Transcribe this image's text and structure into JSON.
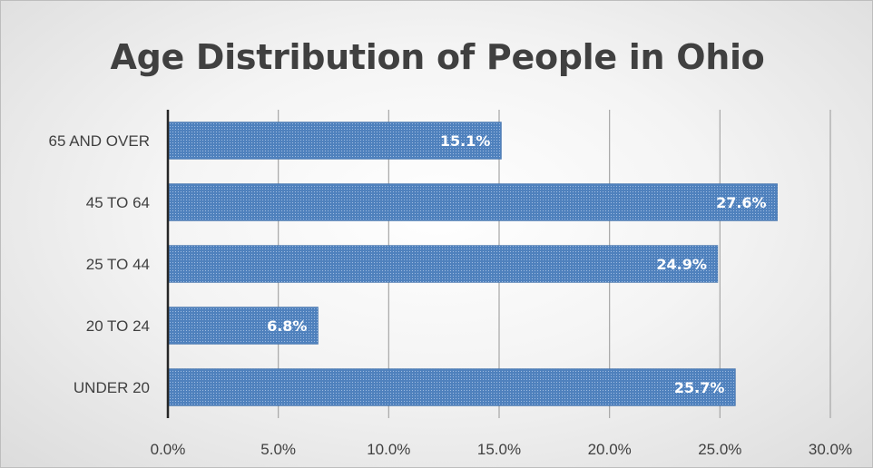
{
  "chart_data": {
    "type": "bar",
    "orientation": "horizontal",
    "title": "Age Distribution of People in Ohio",
    "categories": [
      "UNDER 20",
      "20 TO 24",
      "25 TO 44",
      "45 TO 64",
      "65 AND OVER"
    ],
    "values": [
      25.7,
      6.8,
      24.9,
      27.6,
      15.1
    ],
    "data_labels": [
      "25.7%",
      "6.8%",
      "24.9%",
      "27.6%",
      "15.1%"
    ],
    "xlim": [
      0,
      30
    ],
    "x_ticks": [
      0,
      5,
      10,
      15,
      20,
      25,
      30
    ],
    "x_tick_labels": [
      "0.0%",
      "5.0%",
      "10.0%",
      "15.0%",
      "20.0%",
      "25.0%",
      "30.0%"
    ],
    "xlabel": "",
    "ylabel": "",
    "grid": "vertical",
    "legend": "none",
    "colors": {
      "bar": "#4f81bd",
      "bar_dots": "#9fbbe0",
      "grid": "#a6a6a6",
      "axis": "#262626",
      "text": "#404040"
    }
  }
}
